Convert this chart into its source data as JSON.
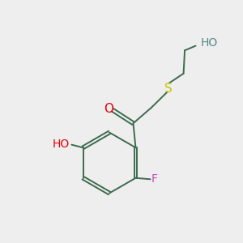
{
  "background_color": "#eeeeee",
  "bond_color": "#3d6b4f",
  "oxygen_color": "#e8000d",
  "sulfur_color": "#c8c800",
  "fluorine_color": "#cc44cc",
  "hydrogen_color": "#558888",
  "font_size": 10,
  "figsize": [
    3.0,
    3.0
  ],
  "dpi": 100,
  "xlim": [
    0,
    10
  ],
  "ylim": [
    0,
    10
  ]
}
